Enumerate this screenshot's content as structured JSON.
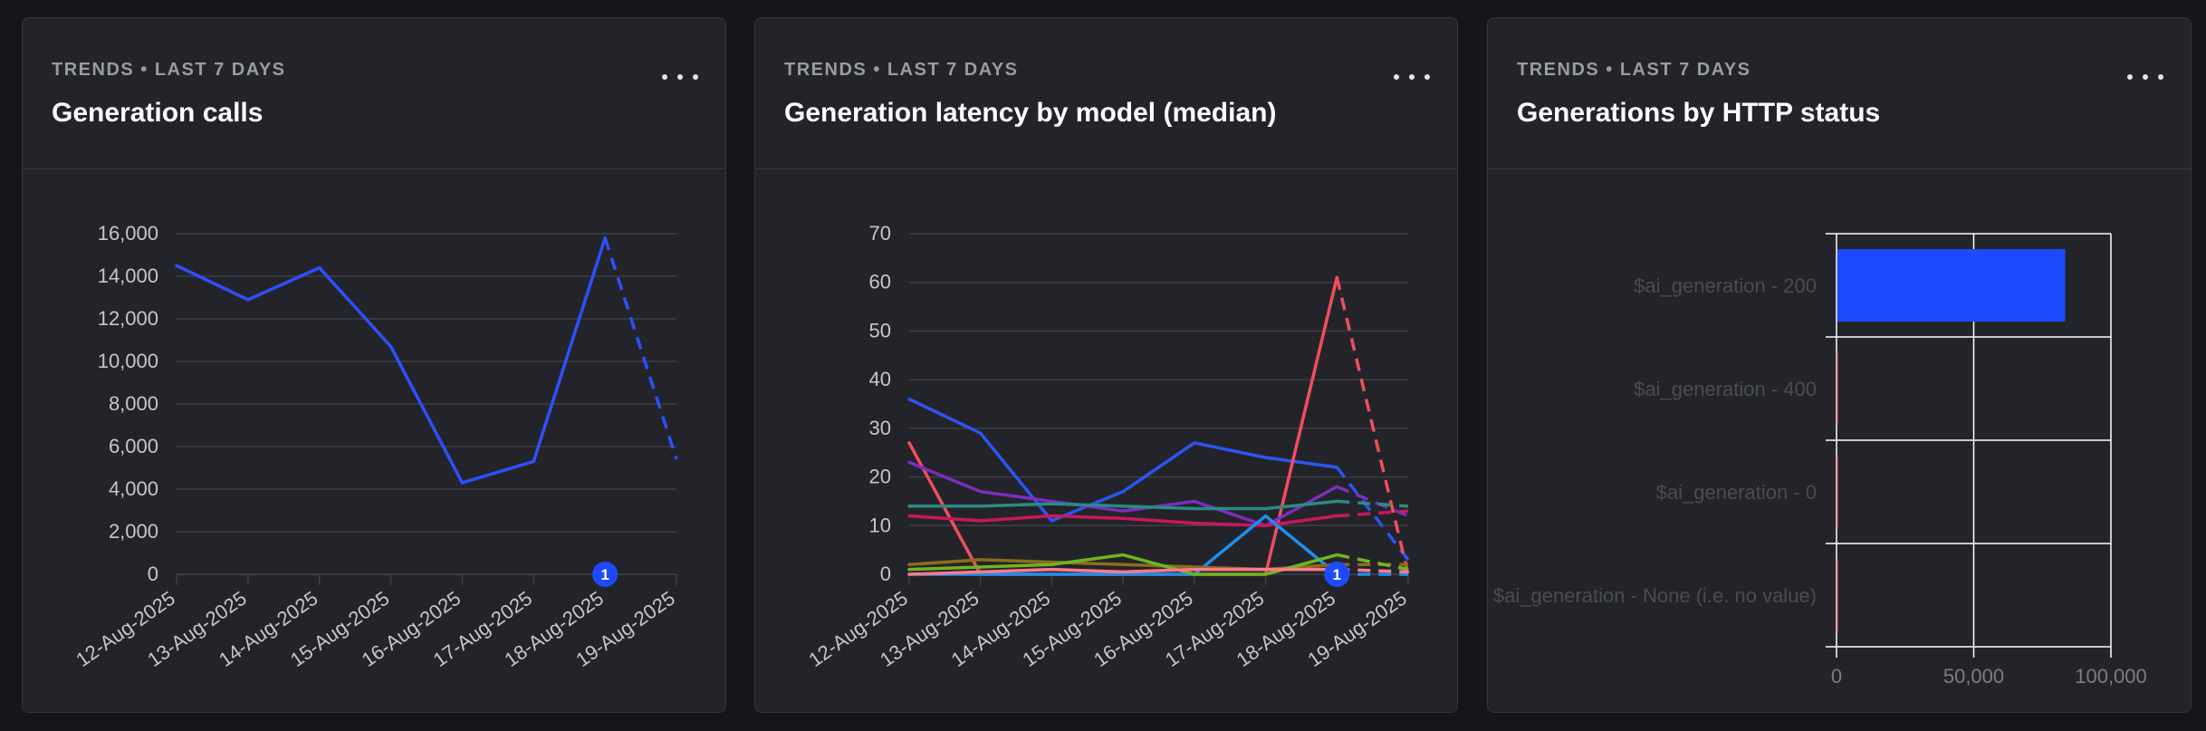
{
  "cards": [
    {
      "eyebrow": "TRENDS • LAST 7 DAYS",
      "title": "Generation calls"
    },
    {
      "eyebrow": "TRENDS • LAST 7 DAYS",
      "title": "Generation latency by model (median)"
    },
    {
      "eyebrow": "TRENDS • LAST 7 DAYS",
      "title": "Generations by HTTP status"
    }
  ],
  "icons": {
    "menu": "more-horizontal-icon",
    "marker": "annotation-marker-icon"
  },
  "colors": {
    "background": "#15161b",
    "card": "#232429",
    "grid": "#3d3f46",
    "axis_text": "#c5c7cc",
    "primary_series": "#2f4fff",
    "bar": "#1d4aff",
    "marker": "#1d4aff"
  },
  "chart_data": [
    {
      "type": "line",
      "title": "Generation calls",
      "x": [
        "12-Aug-2025",
        "13-Aug-2025",
        "14-Aug-2025",
        "15-Aug-2025",
        "16-Aug-2025",
        "17-Aug-2025",
        "18-Aug-2025",
        "19-Aug-2025"
      ],
      "yticks": [
        0,
        2000,
        4000,
        6000,
        8000,
        10000,
        12000,
        14000,
        16000
      ],
      "ytick_labels": [
        "0",
        "2,000",
        "4,000",
        "6,000",
        "8,000",
        "10,000",
        "12,000",
        "14,000",
        "16,000"
      ],
      "ylim": [
        0,
        16000
      ],
      "grid": true,
      "incomplete_last_point": true,
      "annotation": {
        "x": "18-Aug-2025",
        "label": "1"
      },
      "series": [
        {
          "color": "#2f4fff",
          "values": [
            14500,
            12900,
            14400,
            10700,
            4300,
            5300,
            15800,
            5400
          ]
        }
      ]
    },
    {
      "type": "line",
      "title": "Generation latency by model (median)",
      "x": [
        "12-Aug-2025",
        "13-Aug-2025",
        "14-Aug-2025",
        "15-Aug-2025",
        "16-Aug-2025",
        "17-Aug-2025",
        "18-Aug-2025",
        "19-Aug-2025"
      ],
      "yticks": [
        0,
        10,
        20,
        30,
        40,
        50,
        60,
        70
      ],
      "ytick_labels": [
        "0",
        "10",
        "20",
        "30",
        "40",
        "50",
        "60",
        "70"
      ],
      "ylim": [
        0,
        70
      ],
      "grid": true,
      "incomplete_last_point": true,
      "annotation": {
        "x": "18-Aug-2025",
        "label": "1"
      },
      "series": [
        {
          "color": "#2d55f5",
          "values": [
            36,
            29,
            11,
            17,
            27,
            24,
            22,
            3
          ]
        },
        {
          "color": "#f04e5e",
          "values": [
            27,
            0,
            0,
            0,
            0,
            0,
            61,
            0
          ]
        },
        {
          "color": "#7a2fbf",
          "values": [
            23,
            17,
            15,
            13,
            15,
            10,
            18,
            12
          ]
        },
        {
          "color": "#2b8a84",
          "values": [
            14,
            14,
            14.5,
            14,
            13.5,
            13.5,
            15,
            14
          ]
        },
        {
          "color": "#c8175d",
          "values": [
            12,
            11,
            12,
            11.5,
            10.5,
            10,
            12,
            13
          ]
        },
        {
          "color": "#1e8ef0",
          "values": [
            0,
            0,
            0,
            0,
            0,
            12,
            0,
            0
          ]
        },
        {
          "color": "#8a6d1c",
          "values": [
            2,
            3,
            2.5,
            2,
            1.5,
            1,
            2,
            2
          ]
        },
        {
          "color": "#6fb51f",
          "values": [
            1,
            1.5,
            2,
            4,
            0,
            0,
            4,
            1
          ]
        },
        {
          "color": "#ff7a8c",
          "values": [
            0,
            0.5,
            1,
            0.5,
            1,
            1,
            1,
            0.5
          ]
        }
      ]
    },
    {
      "type": "bar",
      "orientation": "horizontal",
      "title": "Generations by HTTP status",
      "categories": [
        "$ai_generation - 200",
        "$ai_generation - 400",
        "$ai_generation - 0",
        "$ai_generation - None (i.e. no value)"
      ],
      "values": [
        83000,
        0,
        0,
        0
      ],
      "xticks": [
        0,
        50000,
        100000
      ],
      "xtick_labels": [
        "0",
        "50,000",
        "100,000"
      ],
      "xlim": [
        0,
        100000
      ],
      "grid": true,
      "bar_color": "#1d4aff"
    }
  ]
}
